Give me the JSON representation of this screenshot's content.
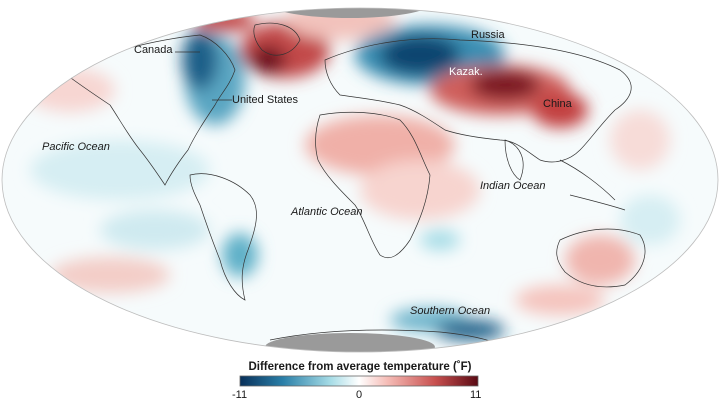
{
  "map": {
    "labels": {
      "canada": "Canada",
      "russia": "Russia",
      "kazak": "Kazak.",
      "united_states": "United States",
      "china": "China",
      "pacific": "Pacific Ocean",
      "indian": "Indian Ocean",
      "atlantic": "Atlantic Ocean",
      "southern": "Southern Ocean"
    },
    "projection": "Mollweide"
  },
  "legend": {
    "title": "Difference from average temperature (˚F)",
    "min_label": "-11",
    "mid_label": "0",
    "max_label": "11",
    "colors": [
      "#08305a",
      "#2a7fa8",
      "#a6dce6",
      "#ffffff",
      "#f5bcb6",
      "#c8504f",
      "#5a0a14"
    ]
  },
  "colors": {
    "ocean_base": "#f6fbfc",
    "polar_no_data": "#9a9a9a",
    "borders": "#333333"
  }
}
